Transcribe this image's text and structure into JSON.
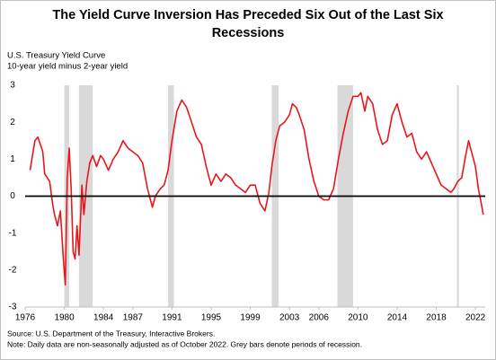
{
  "chart_data": {
    "type": "line",
    "title": [
      "The Yield Curve Inversion Has Preceded Six Out of the Last Six",
      "Recessions"
    ],
    "subtitle": [
      "U.S. Treasury Yield Curve",
      "10-year yield minus 2-year yield"
    ],
    "source": "Source: U.S. Department of the Treasury, Interactive Brokers.",
    "note": "Note: Daily data are non-seasonally adjusted as of October 2022. Grey bars denote periods of recession.",
    "xlim": [
      1976,
      2023
    ],
    "xticks": [
      1976,
      1980,
      1984,
      1987,
      1991,
      1995,
      1999,
      2003,
      2006,
      2010,
      2014,
      2018,
      2022
    ],
    "ylim": [
      -3,
      3
    ],
    "yticks": [
      -3,
      -2,
      -1,
      0,
      1,
      2,
      3
    ],
    "zero_line": true,
    "recession_color": "#d9d9d9",
    "recessions": [
      [
        1980.0,
        1980.5
      ],
      [
        1981.5,
        1982.9
      ],
      [
        1990.6,
        1991.2
      ],
      [
        2001.2,
        2001.9
      ],
      [
        2007.9,
        2009.5
      ],
      [
        2020.1,
        2020.3
      ]
    ],
    "series": [
      {
        "name": "10-year yield minus 2-year yield",
        "color": "#e8161b",
        "x": [
          1976.5,
          1977,
          1977.3,
          1977.8,
          1978,
          1978.5,
          1978.8,
          1979,
          1979.3,
          1979.6,
          1979.9,
          1980.1,
          1980.3,
          1980.5,
          1980.7,
          1980.9,
          1981.1,
          1981.3,
          1981.5,
          1981.8,
          1982,
          1982.3,
          1982.6,
          1982.9,
          1983.3,
          1983.7,
          1984,
          1984.5,
          1985,
          1985.5,
          1986,
          1986.5,
          1987,
          1987.5,
          1988,
          1988.5,
          1989,
          1989.3,
          1989.8,
          1990.2,
          1990.6,
          1991,
          1991.5,
          1992,
          1992.5,
          1993,
          1993.5,
          1994,
          1994.5,
          1995,
          1995.5,
          1996,
          1996.5,
          1997,
          1997.5,
          1998,
          1998.5,
          1999,
          1999.5,
          2000,
          2000.5,
          2000.9,
          2001.2,
          2001.6,
          2002,
          2002.5,
          2003,
          2003.3,
          2003.7,
          2004,
          2004.5,
          2005,
          2005.5,
          2006,
          2006.5,
          2007,
          2007.5,
          2008,
          2008.5,
          2009,
          2009.5,
          2010,
          2010.3,
          2010.7,
          2011,
          2011.5,
          2012,
          2012.5,
          2013,
          2013.5,
          2014,
          2014.5,
          2015,
          2015.5,
          2016,
          2016.5,
          2017,
          2017.5,
          2018,
          2018.5,
          2019,
          2019.5,
          2019.8,
          2020.2,
          2020.6,
          2021,
          2021.3,
          2021.6,
          2022,
          2022.3,
          2022.6,
          2022.8
        ],
        "values": [
          0.7,
          1.5,
          1.6,
          1.2,
          0.6,
          0.4,
          -0.2,
          -0.5,
          -0.8,
          -0.4,
          -1.7,
          -2.4,
          0.5,
          1.3,
          0.2,
          -1.5,
          -1.7,
          -0.8,
          -1.6,
          0.3,
          -0.5,
          0.4,
          0.9,
          1.1,
          0.8,
          1.1,
          1.0,
          0.7,
          1.0,
          1.2,
          1.5,
          1.3,
          1.2,
          1.1,
          0.9,
          0.2,
          -0.3,
          0.0,
          0.2,
          0.3,
          0.7,
          1.5,
          2.3,
          2.6,
          2.4,
          2.0,
          1.6,
          1.4,
          0.8,
          0.3,
          0.6,
          0.4,
          0.6,
          0.5,
          0.3,
          0.2,
          0.1,
          0.3,
          0.3,
          -0.2,
          -0.4,
          0.1,
          0.8,
          1.5,
          1.9,
          2.0,
          2.2,
          2.5,
          2.4,
          2.2,
          1.8,
          1.0,
          0.4,
          0.0,
          -0.1,
          -0.1,
          0.2,
          1.0,
          1.7,
          2.3,
          2.7,
          2.7,
          2.8,
          2.3,
          2.7,
          2.5,
          1.8,
          1.4,
          1.5,
          2.2,
          2.5,
          2.0,
          1.6,
          1.7,
          1.2,
          1.0,
          1.2,
          0.9,
          0.6,
          0.3,
          0.2,
          0.1,
          0.2,
          0.4,
          0.5,
          1.1,
          1.5,
          1.2,
          0.8,
          0.2,
          -0.2,
          -0.5
        ]
      }
    ]
  }
}
